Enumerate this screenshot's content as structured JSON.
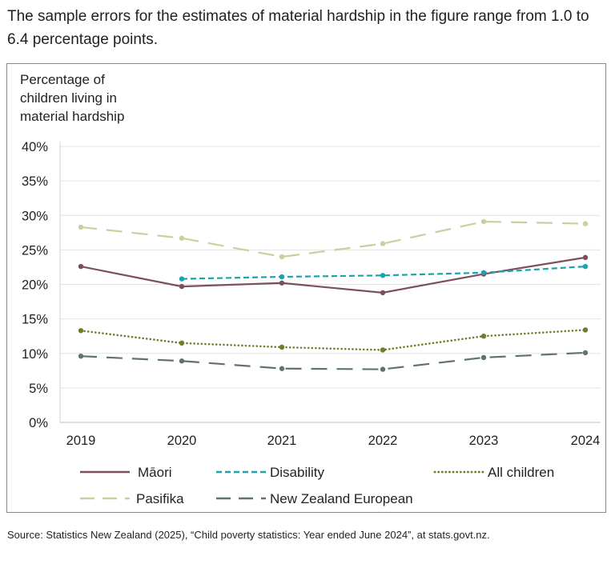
{
  "note": "The sample errors for the estimates of material hardship in the figure range from 1.0 to 6.4 percentage points.",
  "source": "Source: Statistics New Zealand (2025), “Child poverty statistics: Year ended June 2024”, at stats.govt.nz.",
  "chart_data": {
    "type": "line",
    "title": "",
    "ylabel": "Percentage of children living in material hardship",
    "ylabel_lines": [
      "Percentage of",
      "children living in",
      "material hardship"
    ],
    "xlabel": "",
    "x": [
      "2019",
      "2020",
      "2021",
      "2022",
      "2023",
      "2024"
    ],
    "y_ticks": [
      "0%",
      "5%",
      "10%",
      "15%",
      "20%",
      "25%",
      "30%",
      "35%",
      "40%"
    ],
    "ylim": [
      0,
      40
    ],
    "grid": true,
    "series": [
      {
        "name": "Māori",
        "color": "#7b4f5c",
        "dash": "solid",
        "values": [
          22.6,
          19.7,
          20.2,
          18.8,
          21.5,
          23.9
        ]
      },
      {
        "name": "Disability",
        "color": "#1aa3ad",
        "dash": "dashed",
        "values": [
          null,
          20.8,
          21.1,
          21.3,
          21.7,
          22.6
        ]
      },
      {
        "name": "All children",
        "color": "#6f7d2b",
        "dash": "dotted",
        "values": [
          13.3,
          11.5,
          10.9,
          10.5,
          12.5,
          13.4
        ]
      },
      {
        "name": "Pasifika",
        "color": "#c6d1a0",
        "dash": "longdash",
        "values": [
          28.3,
          26.7,
          24.0,
          25.9,
          29.1,
          28.8
        ]
      },
      {
        "name": "New Zealand European",
        "color": "#5f7472",
        "dash": "longdash",
        "values": [
          9.6,
          8.9,
          7.8,
          7.7,
          9.4,
          10.1
        ]
      }
    ]
  }
}
